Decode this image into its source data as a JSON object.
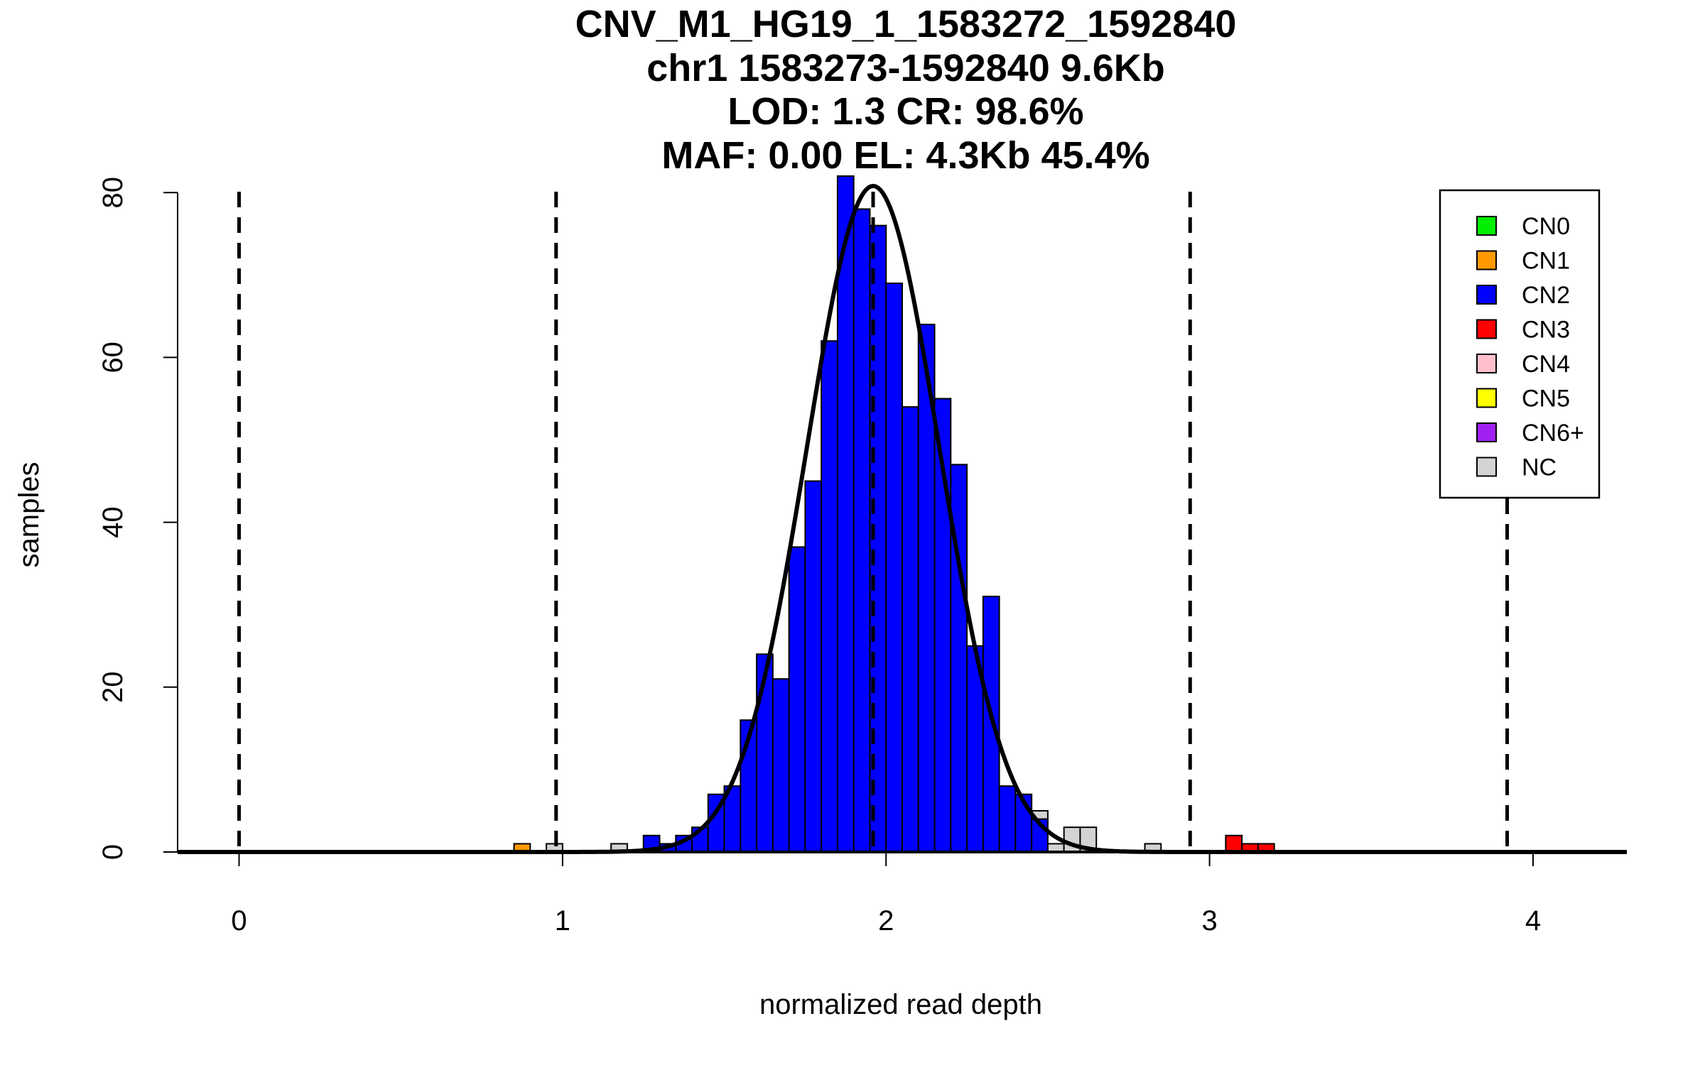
{
  "chart_data": {
    "type": "bar",
    "subtype": "histogram",
    "title_lines": [
      "CNV_M1_HG19_1_1583272_1592840",
      "chr1 1583273-1592840 9.6Kb",
      "LOD: 1.3 CR: 98.6%",
      "MAF: 0.00 EL: 4.3Kb 45.4%"
    ],
    "xlabel": "normalized read depth",
    "ylabel": "samples",
    "xlim": [
      -0.19,
      4.29
    ],
    "ylim": [
      0,
      82
    ],
    "x_ticks": [
      0,
      1,
      2,
      3,
      4
    ],
    "x_tick_labels": [
      "0",
      "1",
      "2",
      "3",
      "4"
    ],
    "y_ticks": [
      0,
      20,
      40,
      60,
      80
    ],
    "y_tick_labels": [
      "0",
      "20",
      "40",
      "60",
      "80"
    ],
    "bin_width": 0.05,
    "bars": [
      {
        "x0": 0.85,
        "count": 1,
        "cn": "CN1"
      },
      {
        "x0": 0.95,
        "count": 1,
        "cn": "NC"
      },
      {
        "x0": 1.15,
        "count": 1,
        "cn": "NC"
      },
      {
        "x0": 1.25,
        "count": 2,
        "cn": "CN2"
      },
      {
        "x0": 1.3,
        "count": 1,
        "cn": "CN2"
      },
      {
        "x0": 1.35,
        "count": 2,
        "cn": "CN2"
      },
      {
        "x0": 1.4,
        "count": 3,
        "cn": "CN2"
      },
      {
        "x0": 1.45,
        "count": 7,
        "cn": "CN2"
      },
      {
        "x0": 1.5,
        "count": 8,
        "cn": "CN2"
      },
      {
        "x0": 1.55,
        "count": 16,
        "cn": "CN2"
      },
      {
        "x0": 1.6,
        "count": 24,
        "cn": "CN2"
      },
      {
        "x0": 1.65,
        "count": 21,
        "cn": "CN2"
      },
      {
        "x0": 1.7,
        "count": 37,
        "cn": "CN2"
      },
      {
        "x0": 1.75,
        "count": 45,
        "cn": "CN2"
      },
      {
        "x0": 1.8,
        "count": 62,
        "cn": "CN2"
      },
      {
        "x0": 1.85,
        "count": 82,
        "cn": "CN2"
      },
      {
        "x0": 1.9,
        "count": 78,
        "cn": "CN2"
      },
      {
        "x0": 1.95,
        "count": 76,
        "cn": "CN2"
      },
      {
        "x0": 2.0,
        "count": 69,
        "cn": "CN2"
      },
      {
        "x0": 2.05,
        "count": 54,
        "cn": "CN2"
      },
      {
        "x0": 2.1,
        "count": 64,
        "cn": "CN2"
      },
      {
        "x0": 2.15,
        "count": 55,
        "cn": "CN2"
      },
      {
        "x0": 2.2,
        "count": 47,
        "cn": "CN2"
      },
      {
        "x0": 2.25,
        "count": 25,
        "cn": "CN2"
      },
      {
        "x0": 2.3,
        "count": 31,
        "cn": "CN2"
      },
      {
        "x0": 2.35,
        "count": 8,
        "cn": "CN2"
      },
      {
        "x0": 2.4,
        "count": 7,
        "cn": "CN2"
      },
      {
        "x0": 2.45,
        "count": 4,
        "cn": "CN2"
      },
      {
        "x0": 2.45,
        "count": 1,
        "cn": "NC",
        "stack": 4
      },
      {
        "x0": 2.5,
        "count": 1,
        "cn": "NC"
      },
      {
        "x0": 2.55,
        "count": 3,
        "cn": "NC"
      },
      {
        "x0": 2.6,
        "count": 3,
        "cn": "NC"
      },
      {
        "x0": 2.8,
        "count": 1,
        "cn": "NC"
      },
      {
        "x0": 3.05,
        "count": 2,
        "cn": "CN3"
      },
      {
        "x0": 3.1,
        "count": 1,
        "cn": "CN3"
      },
      {
        "x0": 3.15,
        "count": 1,
        "cn": "CN3"
      }
    ],
    "fitted_curve": {
      "type": "normal",
      "mean": 1.96,
      "sd": 0.205,
      "peak": 80.8
    },
    "vlines_dashed": [
      0.0,
      0.98,
      1.96,
      2.94,
      3.92
    ],
    "legend": {
      "position": "top-right",
      "entries": [
        {
          "label": "CN0",
          "color": "#00ee00"
        },
        {
          "label": "CN1",
          "color": "#ff9900"
        },
        {
          "label": "CN2",
          "color": "#0000ff"
        },
        {
          "label": "CN3",
          "color": "#ff0000"
        },
        {
          "label": "CN4",
          "color": "#ffc0cb"
        },
        {
          "label": "CN5",
          "color": "#ffff00"
        },
        {
          "label": "CN6+",
          "color": "#a020f0"
        },
        {
          "label": "NC",
          "color": "#d3d3d3"
        }
      ]
    }
  }
}
